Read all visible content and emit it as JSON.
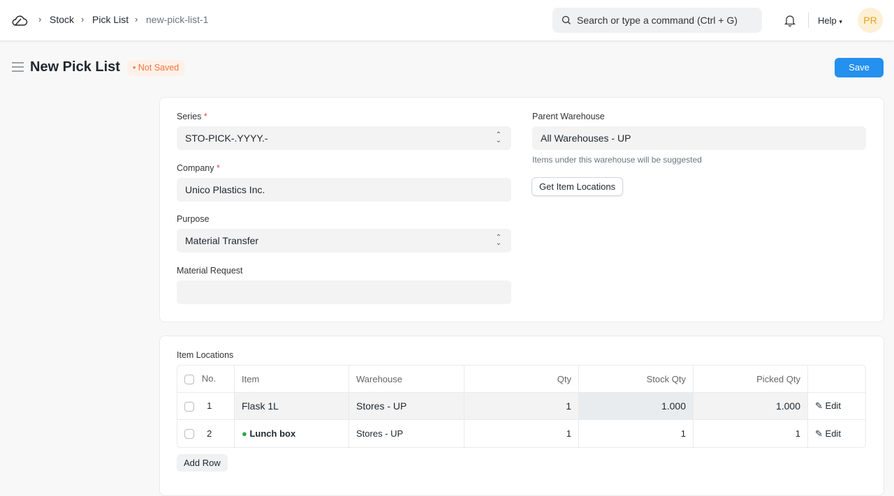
{
  "breadcrumbs": [
    "Stock",
    "Pick List",
    "new-pick-list-1"
  ],
  "search": {
    "placeholder": "Search or type a command (Ctrl + G)"
  },
  "help_label": "Help",
  "avatar_initials": "PR",
  "page": {
    "title": "New Pick List",
    "status": "Not Saved",
    "save_label": "Save"
  },
  "form": {
    "series": {
      "label": "Series",
      "value": "STO-PICK-.YYYY.-"
    },
    "company": {
      "label": "Company",
      "value": "Unico Plastics Inc."
    },
    "purpose": {
      "label": "Purpose",
      "value": "Material Transfer"
    },
    "material_request": {
      "label": "Material Request",
      "value": ""
    },
    "parent_warehouse": {
      "label": "Parent Warehouse",
      "value": "All Warehouses - UP",
      "help": "Items under this warehouse will be suggested"
    },
    "get_locations_label": "Get Item Locations"
  },
  "locations": {
    "label": "Item Locations",
    "columns": [
      "No.",
      "Item",
      "Warehouse",
      "Qty",
      "Stock Qty",
      "Picked Qty"
    ],
    "rows": [
      {
        "no": "1",
        "item": "Flask 1L",
        "warehouse": "Stores - UP",
        "qty": "1",
        "stock_qty": "1.000",
        "picked_qty": "1.000",
        "edit": "Edit"
      },
      {
        "no": "2",
        "item": "Lunch box",
        "warehouse": "Stores - UP",
        "qty": "1",
        "stock_qty": "1",
        "picked_qty": "1",
        "edit": "Edit"
      }
    ],
    "add_row_label": "Add Row"
  },
  "colors": {
    "primary": "#2490ef",
    "not_saved": "#f2743a",
    "green_dot": "#28a745"
  }
}
